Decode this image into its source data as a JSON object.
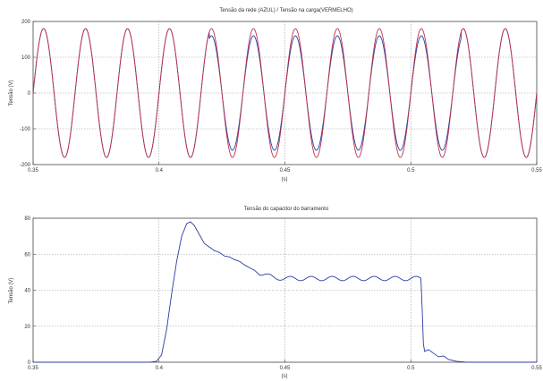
{
  "chart_data": [
    {
      "type": "line",
      "title": "Tensão da rede (AZUL) / Tensão na carga(VERMELHO)",
      "xlabel": "(s)",
      "ylabel": "Tensão (V)",
      "xlim": [
        0.35,
        0.55
      ],
      "ylim": [
        -200,
        200
      ],
      "xticks": [
        0.35,
        0.4,
        0.45,
        0.5,
        0.55
      ],
      "xtick_labels": [
        "0.35",
        "0.4",
        "0.45",
        "0.5",
        "0.55"
      ],
      "yticks": [
        -200,
        -100,
        0,
        100,
        200
      ],
      "ytick_labels": [
        "-200",
        "-100",
        "0",
        "100",
        "200"
      ],
      "grid": true,
      "series": [
        {
          "color": "#2a3aa0",
          "frequency_hz": 60,
          "sag_interval": [
            0.42,
            0.52
          ],
          "amplitude_normal": 180,
          "amplitude_sag": 160
        },
        {
          "color": "#c0304a",
          "frequency_hz": 60,
          "amplitude": 180
        }
      ]
    },
    {
      "type": "line",
      "title": "Tensão do capacitor do barramento",
      "xlabel": "(s)",
      "ylabel": "Tensão (V)",
      "xlim": [
        0.35,
        0.55
      ],
      "ylim": [
        0,
        80
      ],
      "xticks": [
        0.35,
        0.4,
        0.45,
        0.5,
        0.55
      ],
      "xtick_labels": [
        "0.35",
        "0.4",
        "0.45",
        "0.5",
        "0.55"
      ],
      "yticks": [
        0,
        20,
        40,
        60,
        80
      ],
      "ytick_labels": [
        "0",
        "20",
        "40",
        "60",
        "80"
      ],
      "grid": true,
      "series": [
        {
          "color": "#2a3aa0",
          "points": [
            [
              0.35,
              0
            ],
            [
              0.3965,
              0
            ],
            [
              0.399,
              0.5
            ],
            [
              0.401,
              4
            ],
            [
              0.403,
              18
            ],
            [
              0.405,
              38
            ],
            [
              0.407,
              56
            ],
            [
              0.409,
              70
            ],
            [
              0.411,
              77
            ],
            [
              0.4125,
              78
            ],
            [
              0.414,
              76
            ],
            [
              0.416,
              71
            ],
            [
              0.418,
              66
            ],
            [
              0.42,
              64
            ],
            [
              0.422,
              62
            ],
            [
              0.424,
              61
            ],
            [
              0.426,
              59
            ],
            [
              0.428,
              58.5
            ],
            [
              0.43,
              57
            ],
            [
              0.432,
              56
            ],
            [
              0.434,
              54
            ],
            [
              0.436,
              52.5
            ],
            [
              0.438,
              51
            ],
            [
              0.44,
              49.5
            ],
            [
              0.443,
              48
            ],
            [
              0.446,
              47
            ],
            [
              0.45,
              46.5
            ],
            [
              0.5,
              46.5
            ],
            [
              0.504,
              46.5
            ],
            [
              0.5045,
              30
            ],
            [
              0.505,
              10
            ],
            [
              0.5055,
              6
            ],
            [
              0.507,
              7
            ],
            [
              0.509,
              5
            ],
            [
              0.511,
              3
            ],
            [
              0.513,
              3.5
            ],
            [
              0.515,
              1.5
            ],
            [
              0.518,
              0.5
            ],
            [
              0.522,
              0
            ],
            [
              0.55,
              0
            ]
          ],
          "ripple_until": 0.504,
          "ripple_amplitude": 1.2
        }
      ]
    }
  ]
}
